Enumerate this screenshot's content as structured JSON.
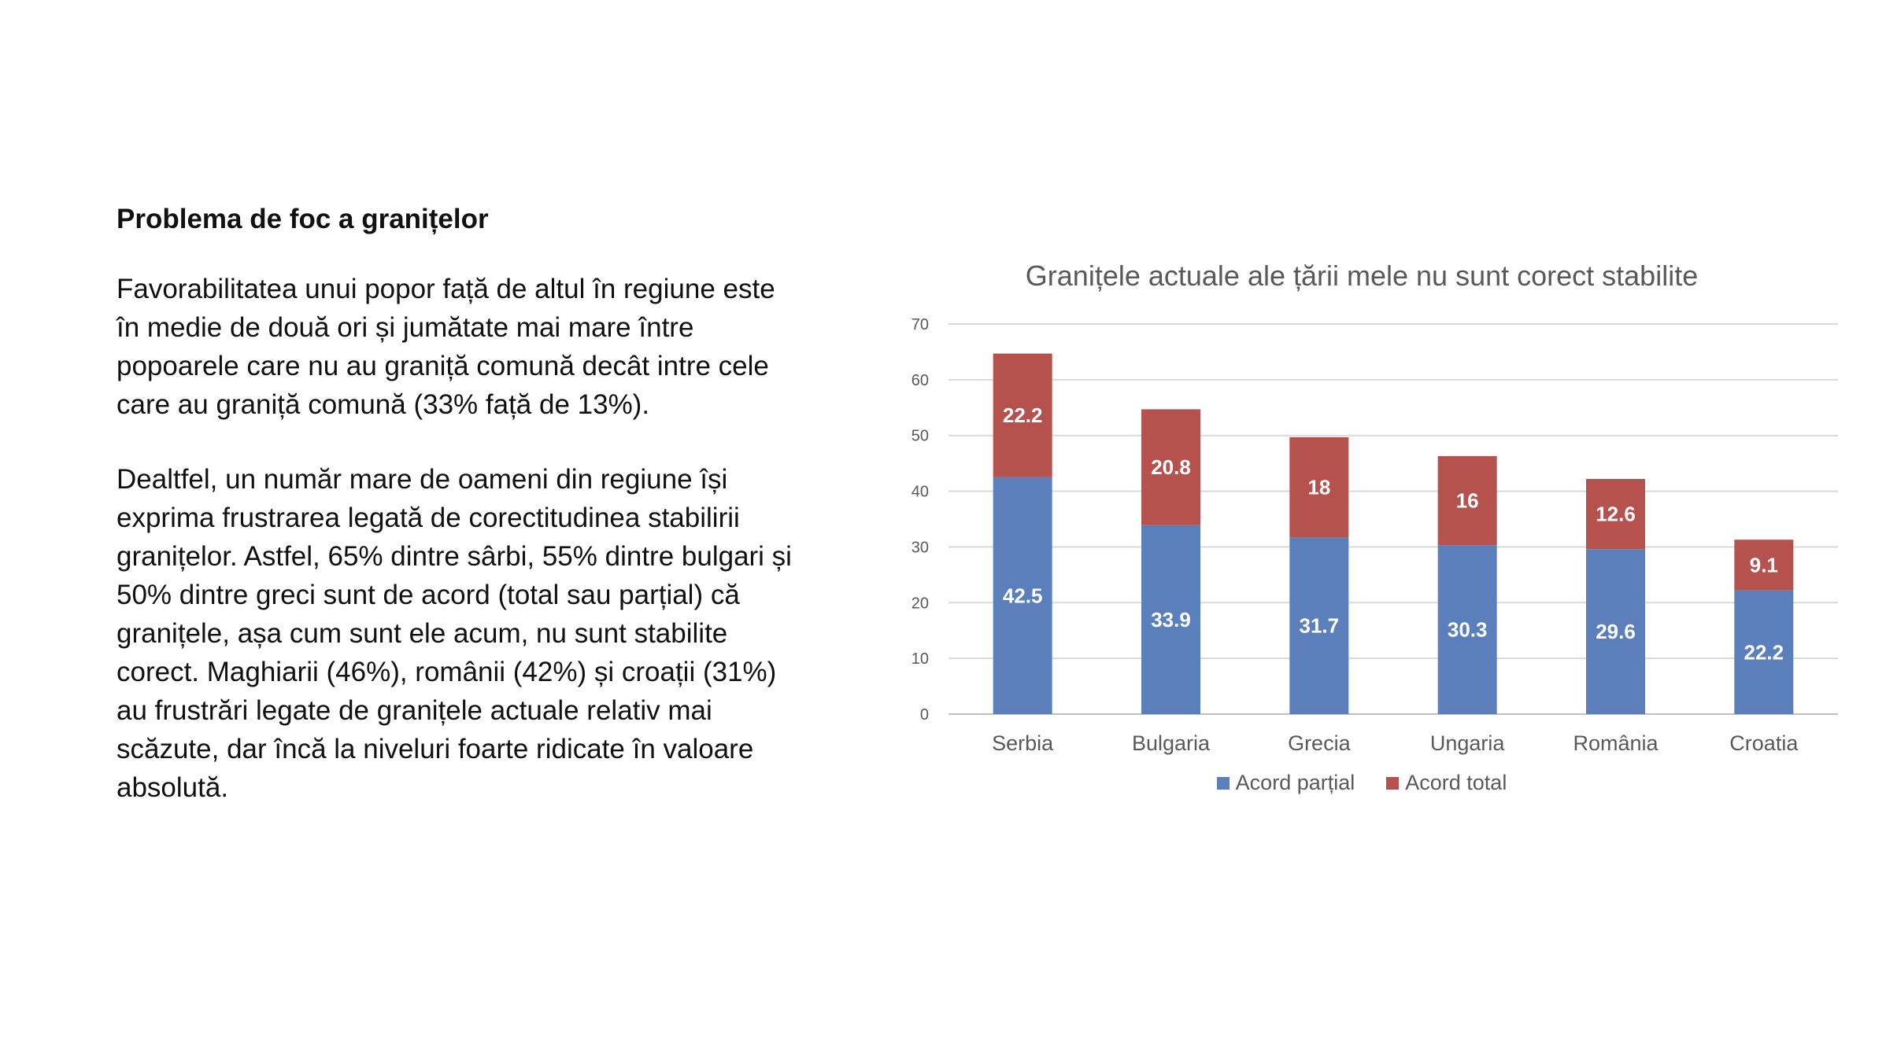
{
  "text": {
    "heading": "Problema de foc a granițelor",
    "paragraph1": "Favorabilitatea unui popor față de altul în regiune este în medie de două ori și jumătate mai mare între popoarele care nu au graniță comună decât intre cele care au graniță comună (33% față de 13%).",
    "paragraph2": "Dealtfel, un număr mare de oameni din regiune își exprima frustrarea legată de corectitudinea stabilirii granițelor. Astfel, 65% dintre sârbi, 55% dintre bulgari și 50% dintre greci sunt de acord (total sau parțial) că granițele, așa cum sunt ele acum, nu sunt stabilite corect. Maghiarii (46%), românii (42%) și croații (31%) au frustrări legate de granițele actuale relativ mai scăzute, dar încă la niveluri foarte ridicate în valoare absolută."
  },
  "chart_data": {
    "type": "bar",
    "stacked": true,
    "title": "Granițele actuale ale țării mele nu sunt corect stabilite",
    "xlabel": "",
    "ylabel": "",
    "ylim": [
      0,
      70
    ],
    "yticks": [
      0,
      10,
      20,
      30,
      40,
      50,
      60,
      70
    ],
    "grid": true,
    "legend_position": "bottom",
    "categories": [
      "Serbia",
      "Bulgaria",
      "Grecia",
      "Ungaria",
      "România",
      "Croatia"
    ],
    "series": [
      {
        "name": "Acord parțial",
        "color": "#5B7FBB",
        "values": [
          42.5,
          33.9,
          31.7,
          30.3,
          29.6,
          22.2
        ]
      },
      {
        "name": "Acord total",
        "color": "#B5524E",
        "values": [
          22.2,
          20.8,
          18,
          16,
          12.6,
          9.1
        ]
      }
    ]
  }
}
